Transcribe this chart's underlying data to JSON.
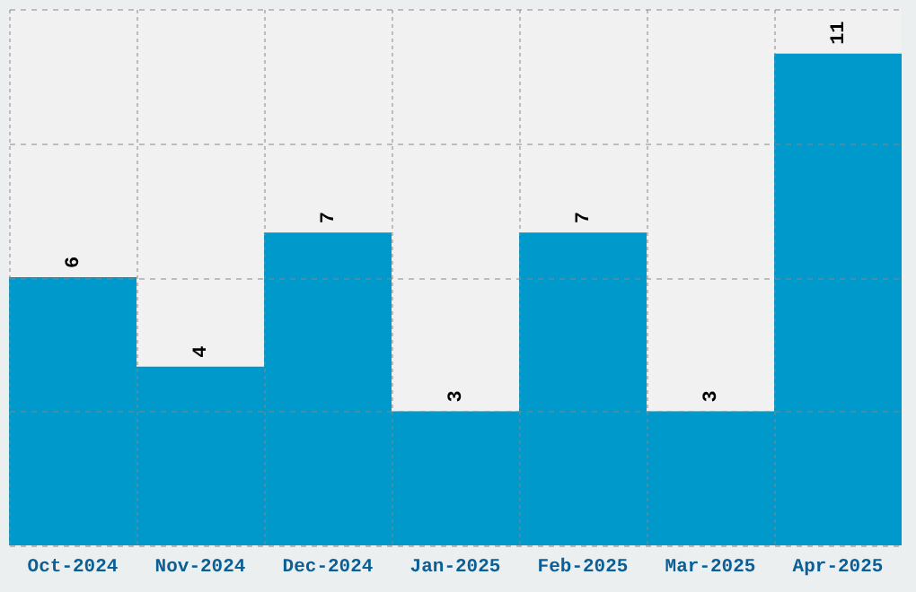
{
  "chart_data": {
    "type": "bar",
    "categories": [
      "Oct-2024",
      "Nov-2024",
      "Dec-2024",
      "Jan-2025",
      "Feb-2025",
      "Mar-2025",
      "Apr-2025"
    ],
    "values": [
      6,
      4,
      7,
      3,
      7,
      3,
      11
    ],
    "color": "#0099cc",
    "ylim": [
      0,
      12
    ],
    "yticks": [
      {
        "value": 0,
        "label": null
      },
      {
        "value": 3,
        "label": null
      },
      {
        "value": 6,
        "label": null
      },
      {
        "value": 9,
        "label": null
      },
      {
        "value": 12,
        "label": null
      }
    ],
    "tick_labels": "x",
    "grid": true,
    "data_labels": true
  }
}
